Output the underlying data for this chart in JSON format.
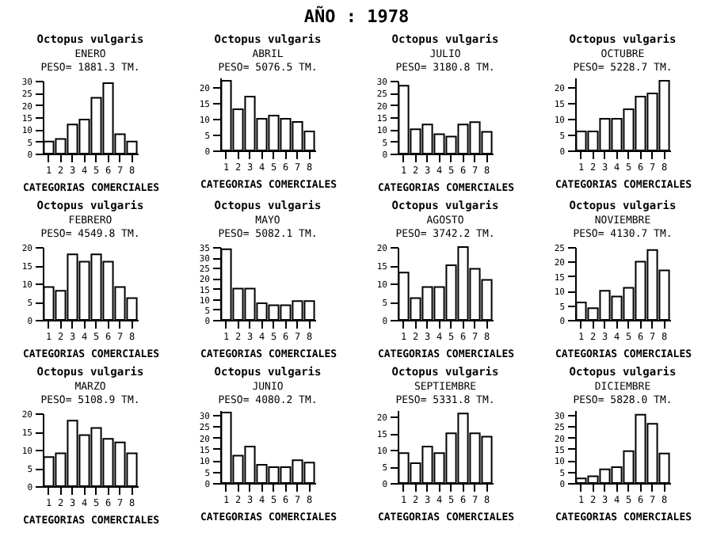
{
  "chart_data": [
    {
      "type": "other",
      "title": "AÑO : 1978"
    },
    {
      "type": "bar",
      "title": "Octopus vulgaris",
      "subtitle": "ENERO",
      "annotations": [
        "PESO= 1881.3 TM."
      ],
      "xlabel": "CATEGORIAS COMERCIALES",
      "categories": [
        "1",
        "2",
        "3",
        "4",
        "5",
        "6",
        "7",
        "8"
      ],
      "values": [
        5,
        6,
        12,
        14,
        23,
        29,
        8,
        5
      ],
      "color": "#ffffff",
      "ylim": [
        0,
        30
      ],
      "yticks": [
        0,
        5,
        10,
        15,
        20,
        25,
        30
      ]
    },
    {
      "type": "bar",
      "title": "Octopus vulgaris",
      "subtitle": "ABRIL",
      "annotations": [
        "PESO= 5076.5 TM."
      ],
      "xlabel": "CATEGORIAS COMERCIALES",
      "categories": [
        "1",
        "2",
        "3",
        "4",
        "5",
        "6",
        "7",
        "8"
      ],
      "values": [
        22,
        13,
        17,
        10,
        11,
        10,
        9,
        6
      ],
      "color": "#ffffff",
      "ylim": [
        0,
        23
      ],
      "yticks": [
        0,
        5,
        10,
        15,
        20
      ]
    },
    {
      "type": "bar",
      "title": "Octopus vulgaris",
      "subtitle": "JULIO",
      "annotations": [
        "PESO= 3180.8 TM."
      ],
      "xlabel": "CATEGORIAS COMERCIALES",
      "categories": [
        "1",
        "2",
        "3",
        "4",
        "5",
        "6",
        "7",
        "8"
      ],
      "values": [
        28,
        10,
        12,
        8,
        7,
        12,
        13,
        9
      ],
      "color": "#ffffff",
      "ylim": [
        0,
        30
      ],
      "yticks": [
        0,
        5,
        10,
        15,
        20,
        25,
        30
      ]
    },
    {
      "type": "bar",
      "title": "Octopus vulgaris",
      "subtitle": "OCTUBRE",
      "annotations": [
        "PESO= 5228.7 TM."
      ],
      "xlabel": "CATEGORIAS COMERCIALES",
      "categories": [
        "1",
        "2",
        "3",
        "4",
        "5",
        "6",
        "7",
        "8"
      ],
      "values": [
        6,
        6,
        10,
        10,
        13,
        17,
        18,
        22
      ],
      "color": "#ffffff",
      "ylim": [
        0,
        23
      ],
      "yticks": [
        0,
        5,
        10,
        15,
        20
      ]
    },
    {
      "type": "bar",
      "title": "Octopus vulgaris",
      "subtitle": "FEBRERO",
      "annotations": [
        "PESO= 4549.8 TM."
      ],
      "xlabel": "CATEGORIAS COMERCIALES",
      "categories": [
        "1",
        "2",
        "3",
        "4",
        "5",
        "6",
        "7",
        "8"
      ],
      "values": [
        9,
        8,
        18,
        16,
        18,
        16,
        9,
        6
      ],
      "color": "#ffffff",
      "ylim": [
        0,
        20
      ],
      "yticks": [
        0,
        5,
        10,
        15,
        20
      ]
    },
    {
      "type": "bar",
      "title": "Octopus vulgaris",
      "subtitle": "MAYO",
      "annotations": [
        "PESO= 5082.1 TM."
      ],
      "xlabel": "CATEGORIAS COMERCIALES",
      "categories": [
        "1",
        "2",
        "3",
        "4",
        "5",
        "6",
        "7",
        "8"
      ],
      "values": [
        34,
        15,
        15,
        8,
        7,
        7,
        9,
        9
      ],
      "color": "#ffffff",
      "ylim": [
        0,
        35
      ],
      "yticks": [
        0,
        5,
        10,
        15,
        20,
        25,
        30,
        35
      ]
    },
    {
      "type": "bar",
      "title": "Octopus vulgaris",
      "subtitle": "AGOSTO",
      "annotations": [
        "PESO= 3742.2 TM."
      ],
      "xlabel": "CATEGORIAS COMERCIALES",
      "categories": [
        "1",
        "2",
        "3",
        "4",
        "5",
        "6",
        "7",
        "8"
      ],
      "values": [
        13,
        6,
        9,
        9,
        15,
        20,
        14,
        11
      ],
      "color": "#ffffff",
      "ylim": [
        0,
        20
      ],
      "yticks": [
        0,
        5,
        10,
        15,
        20
      ]
    },
    {
      "type": "bar",
      "title": "Octopus vulgaris",
      "subtitle": "NOVIEMBRE",
      "annotations": [
        "PESO= 4130.7 TM."
      ],
      "xlabel": "CATEGORIAS COMERCIALES",
      "categories": [
        "1",
        "2",
        "3",
        "4",
        "5",
        "6",
        "7",
        "8"
      ],
      "values": [
        6,
        4,
        10,
        8,
        11,
        20,
        24,
        17
      ],
      "color": "#ffffff",
      "ylim": [
        0,
        25
      ],
      "yticks": [
        0,
        5,
        10,
        15,
        20,
        25
      ]
    },
    {
      "type": "bar",
      "title": "Octopus vulgaris",
      "subtitle": "MARZO",
      "annotations": [
        "PESO= 5108.9 TM."
      ],
      "xlabel": "CATEGORIAS COMERCIALES",
      "categories": [
        "1",
        "2",
        "3",
        "4",
        "5",
        "6",
        "7",
        "8"
      ],
      "values": [
        8,
        9,
        18,
        14,
        16,
        13,
        12,
        9
      ],
      "color": "#ffffff",
      "ylim": [
        0,
        20
      ],
      "yticks": [
        0,
        5,
        10,
        15,
        20
      ]
    },
    {
      "type": "bar",
      "title": "Octopus vulgaris",
      "subtitle": "JUNIO",
      "annotations": [
        "PESO= 4080.2 TM."
      ],
      "xlabel": "CATEGORIAS COMERCIALES",
      "categories": [
        "1",
        "2",
        "3",
        "4",
        "5",
        "6",
        "7",
        "8"
      ],
      "values": [
        31,
        12,
        16,
        8,
        7,
        7,
        10,
        9
      ],
      "color": "#ffffff",
      "ylim": [
        0,
        32
      ],
      "yticks": [
        0,
        5,
        10,
        15,
        20,
        25,
        30
      ]
    },
    {
      "type": "bar",
      "title": "Octopus vulgaris",
      "subtitle": "SEPTIEMBRE",
      "annotations": [
        "PESO= 5331.8 TM."
      ],
      "xlabel": "CATEGORIAS COMERCIALES",
      "categories": [
        "1",
        "2",
        "3",
        "4",
        "5",
        "6",
        "7",
        "8"
      ],
      "values": [
        9,
        6,
        11,
        9,
        15,
        21,
        15,
        14
      ],
      "color": "#ffffff",
      "ylim": [
        0,
        22
      ],
      "yticks": [
        0,
        5,
        10,
        15,
        20
      ]
    },
    {
      "type": "bar",
      "title": "Octopus vulgaris",
      "subtitle": "DICIEMBRE",
      "annotations": [
        "PESO= 5828.0 TM."
      ],
      "xlabel": "CATEGORIAS COMERCIALES",
      "categories": [
        "1",
        "2",
        "3",
        "4",
        "5",
        "6",
        "7",
        "8"
      ],
      "values": [
        2,
        3,
        6,
        7,
        14,
        30,
        26,
        13
      ],
      "color": "#ffffff",
      "ylim": [
        0,
        32
      ],
      "yticks": [
        0,
        5,
        10,
        15,
        20,
        25,
        30
      ]
    }
  ]
}
